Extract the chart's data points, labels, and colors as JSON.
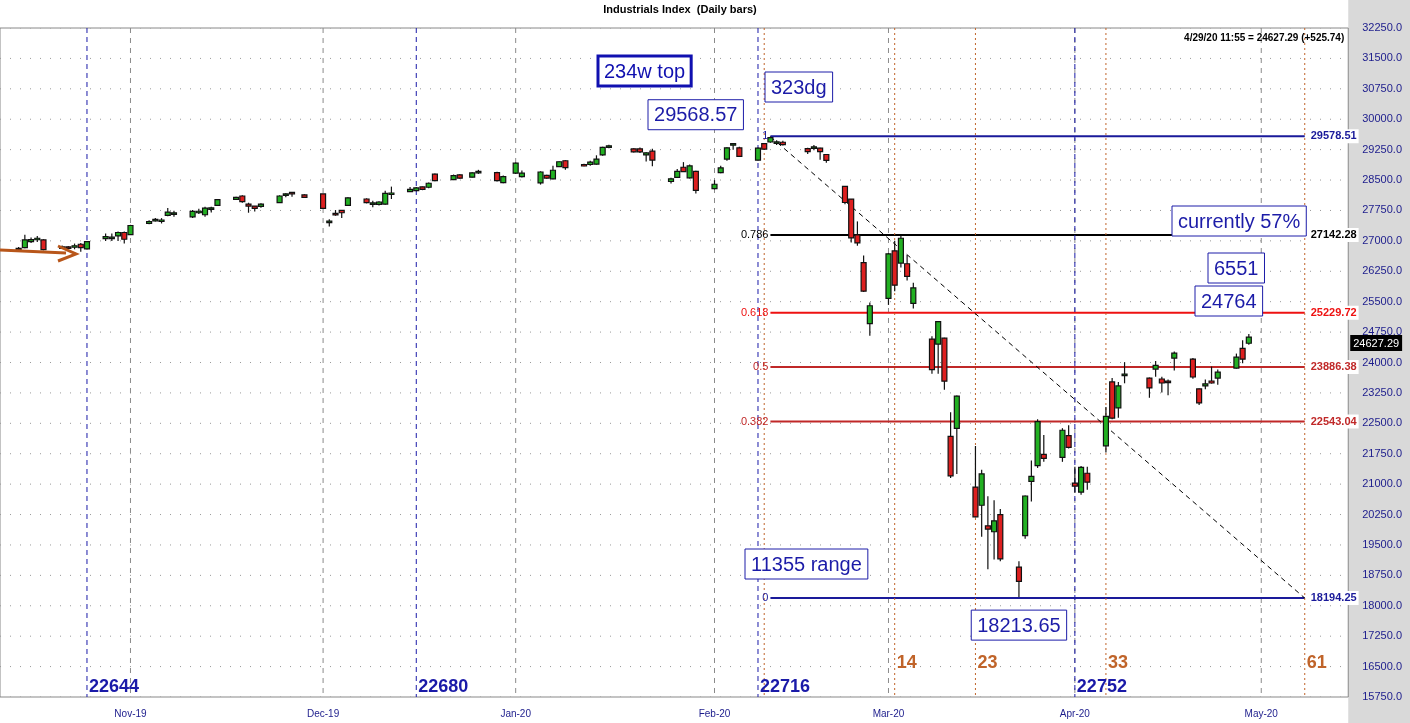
{
  "chart_data": {
    "type": "candlestick",
    "title": "Industrials Index  (Daily bars)",
    "x": [
      "2019-10-14",
      "2019-10-15",
      "2019-10-16",
      "2019-10-17",
      "2019-10-18",
      "2019-10-21",
      "2019-10-22",
      "2019-10-23",
      "2019-10-24",
      "2019-10-25",
      "2019-10-28",
      "2019-10-29",
      "2019-10-30",
      "2019-10-31",
      "2019-11-01",
      "2019-11-04",
      "2019-11-05",
      "2019-11-06",
      "2019-11-07",
      "2019-11-08",
      "2019-11-11",
      "2019-11-12",
      "2019-11-13",
      "2019-11-14",
      "2019-11-15",
      "2019-11-18",
      "2019-11-19",
      "2019-11-20",
      "2019-11-21",
      "2019-11-22",
      "2019-11-25",
      "2019-11-26",
      "2019-11-27",
      "2019-11-29",
      "2019-12-02",
      "2019-12-03",
      "2019-12-04",
      "2019-12-05",
      "2019-12-06",
      "2019-12-09",
      "2019-12-10",
      "2019-12-11",
      "2019-12-12",
      "2019-12-13",
      "2019-12-16",
      "2019-12-17",
      "2019-12-18",
      "2019-12-19",
      "2019-12-20",
      "2019-12-23",
      "2019-12-24",
      "2019-12-26",
      "2019-12-27",
      "2019-12-30",
      "2019-12-31",
      "2020-01-02",
      "2020-01-03",
      "2020-01-06",
      "2020-01-07",
      "2020-01-08",
      "2020-01-09",
      "2020-01-10",
      "2020-01-13",
      "2020-01-14",
      "2020-01-15",
      "2020-01-16",
      "2020-01-17",
      "2020-01-21",
      "2020-01-22",
      "2020-01-23",
      "2020-01-24",
      "2020-01-27",
      "2020-01-28",
      "2020-01-29",
      "2020-01-30",
      "2020-01-31",
      "2020-02-03",
      "2020-02-04",
      "2020-02-05",
      "2020-02-06",
      "2020-02-07",
      "2020-02-10",
      "2020-02-11",
      "2020-02-12",
      "2020-02-13",
      "2020-02-14",
      "2020-02-18",
      "2020-02-19",
      "2020-02-20",
      "2020-02-21",
      "2020-02-24",
      "2020-02-25",
      "2020-02-26",
      "2020-02-27",
      "2020-02-28",
      "2020-03-02",
      "2020-03-03",
      "2020-03-04",
      "2020-03-05",
      "2020-03-06",
      "2020-03-09",
      "2020-03-10",
      "2020-03-11",
      "2020-03-12",
      "2020-03-13",
      "2020-03-16",
      "2020-03-17",
      "2020-03-18",
      "2020-03-19",
      "2020-03-20",
      "2020-03-23",
      "2020-03-24",
      "2020-03-25",
      "2020-03-26",
      "2020-03-27",
      "2020-03-30",
      "2020-03-31",
      "2020-04-01",
      "2020-04-02",
      "2020-04-03",
      "2020-04-06",
      "2020-04-07",
      "2020-04-08",
      "2020-04-09",
      "2020-04-13",
      "2020-04-14",
      "2020-04-15",
      "2020-04-16",
      "2020-04-17",
      "2020-04-20",
      "2020-04-21",
      "2020-04-22",
      "2020-04-23",
      "2020-04-24",
      "2020-04-27",
      "2020-04-28",
      "2020-04-29"
    ],
    "ohlc": [
      [
        26817,
        26850,
        26767,
        26792
      ],
      [
        26833,
        27148,
        26817,
        27024
      ],
      [
        26982,
        27081,
        26949,
        27032
      ],
      [
        27057,
        27123,
        26974,
        27065
      ],
      [
        27024,
        27040,
        26767,
        26784
      ],
      [
        26850,
        26883,
        26817,
        26845
      ],
      [
        26850,
        26866,
        26800,
        26817
      ],
      [
        26875,
        26933,
        26792,
        26880
      ],
      [
        26916,
        26949,
        26734,
        26833
      ],
      [
        26800,
        26999,
        26784,
        26982
      ],
      [
        27057,
        27181,
        26999,
        27106
      ],
      [
        27081,
        27181,
        26999,
        27090
      ],
      [
        27123,
        27230,
        26999,
        27206
      ],
      [
        27206,
        27230,
        26933,
        27040
      ],
      [
        27156,
        27396,
        27148,
        27379
      ],
      [
        27429,
        27511,
        27412,
        27478
      ],
      [
        27528,
        27561,
        27478,
        27531
      ],
      [
        27511,
        27561,
        27429,
        27514
      ],
      [
        27627,
        27809,
        27610,
        27710
      ],
      [
        27685,
        27743,
        27594,
        27690
      ],
      [
        27594,
        27759,
        27561,
        27726
      ],
      [
        27726,
        27792,
        27660,
        27730
      ],
      [
        27644,
        27842,
        27594,
        27809
      ],
      [
        27809,
        27842,
        27702,
        27815
      ],
      [
        27875,
        28033,
        27867,
        28016
      ],
      [
        28024,
        28090,
        28008,
        28074
      ],
      [
        28107,
        28123,
        27941,
        27966
      ],
      [
        27908,
        27941,
        27694,
        27859
      ],
      [
        27859,
        27859,
        27726,
        27801
      ],
      [
        27850,
        27925,
        27818,
        27908
      ],
      [
        27941,
        28123,
        27941,
        28107
      ],
      [
        28140,
        28173,
        28074,
        28157
      ],
      [
        28198,
        28206,
        28090,
        28190
      ],
      [
        28132,
        28148,
        28060,
        28074
      ],
      [
        28157,
        28157,
        27790,
        27801
      ],
      [
        27480,
        27536,
        27354,
        27488
      ],
      [
        27677,
        27760,
        27619,
        27644
      ],
      [
        27751,
        27760,
        27561,
        27693
      ],
      [
        27875,
        28074,
        27867,
        28058
      ],
      [
        28033,
        28049,
        27925,
        27941
      ],
      [
        27925,
        27991,
        27826,
        27935
      ],
      [
        27900,
        27975,
        27875,
        27958
      ],
      [
        27908,
        28239,
        27892,
        28173
      ],
      [
        28173,
        28338,
        28033,
        28180
      ],
      [
        28214,
        28330,
        28206,
        28272
      ],
      [
        28239,
        28330,
        28223,
        28305
      ],
      [
        28330,
        28338,
        28250,
        28272
      ],
      [
        28322,
        28440,
        28300,
        28421
      ],
      [
        28644,
        28660,
        28470,
        28487
      ],
      [
        28512,
        28636,
        28500,
        28611
      ],
      [
        28627,
        28640,
        28530,
        28545
      ],
      [
        28570,
        28690,
        28560,
        28677
      ],
      [
        28710,
        28752,
        28653,
        28715
      ],
      [
        28685,
        28702,
        28462,
        28487
      ],
      [
        28437,
        28611,
        28421,
        28586
      ],
      [
        28669,
        28930,
        28650,
        28917
      ],
      [
        28586,
        28735,
        28562,
        28669
      ],
      [
        28430,
        28716,
        28388,
        28699
      ],
      [
        28615,
        28630,
        28530,
        28548
      ],
      [
        28531,
        28850,
        28520,
        28741
      ],
      [
        28833,
        28960,
        28820,
        28951
      ],
      [
        28976,
        28990,
        28757,
        28808
      ],
      [
        28884,
        28900,
        28840,
        28850
      ],
      [
        28884,
        28976,
        28850,
        28942
      ],
      [
        28892,
        29110,
        28880,
        29018
      ],
      [
        29119,
        29320,
        29100,
        29304
      ],
      [
        29337,
        29371,
        29287,
        29345
      ],
      [
        29270,
        29287,
        29180,
        29194
      ],
      [
        29270,
        29300,
        29170,
        29194
      ],
      [
        29119,
        29186,
        28959,
        29169
      ],
      [
        29211,
        29270,
        28842,
        28993
      ],
      [
        28464,
        28556,
        28414,
        28531
      ],
      [
        28564,
        28774,
        28550,
        28716
      ],
      [
        28816,
        28942,
        28700,
        28707
      ],
      [
        28556,
        28884,
        28540,
        28850
      ],
      [
        28716,
        28730,
        28171,
        28245
      ],
      [
        28287,
        28497,
        28270,
        28396
      ],
      [
        28682,
        28850,
        28670,
        28800
      ],
      [
        29018,
        29310,
        28976,
        29295
      ],
      [
        29388,
        29400,
        29245,
        29396
      ],
      [
        29295,
        29320,
        29070,
        29085
      ],
      [
        28993,
        29300,
        28980,
        29287
      ],
      [
        29396,
        29410,
        29250,
        29262
      ],
      [
        29438,
        29568.57,
        29420,
        29547
      ],
      [
        29430,
        29480,
        29366,
        29440
      ],
      [
        29432,
        29470,
        29350,
        29375
      ],
      [
        29276,
        29295,
        29140,
        29203
      ],
      [
        29310,
        29366,
        29236,
        29318
      ],
      [
        29285,
        29295,
        29000,
        29203
      ],
      [
        29130,
        29140,
        28926,
        28983
      ],
      [
        28346,
        28346,
        27900,
        27946
      ],
      [
        28028,
        28028,
        26960,
        27073
      ],
      [
        27146,
        27480,
        26880,
        26950
      ],
      [
        26461,
        26640,
        25740,
        25759
      ],
      [
        24959,
        25480,
        24660,
        25400
      ],
      [
        25580,
        26700,
        25420,
        26681
      ],
      [
        26755,
        27000,
        25760,
        25906
      ],
      [
        26453,
        27130,
        26340,
        27065
      ],
      [
        26436,
        26650,
        26020,
        26126
      ],
      [
        25457,
        25970,
        25330,
        25840
      ],
      [
        24576,
        24650,
        23720,
        23825
      ],
      [
        24454,
        25020,
        23720,
        25008
      ],
      [
        24600,
        24610,
        23330,
        23540
      ],
      [
        22176,
        22770,
        21150,
        21205
      ],
      [
        22373,
        23185,
        21253,
        23172
      ],
      [
        20928,
        21940,
        20180,
        20193
      ],
      [
        20479,
        21355,
        19700,
        21253
      ],
      [
        19973,
        20700,
        18900,
        19891
      ],
      [
        19826,
        20600,
        19140,
        20096
      ],
      [
        20250,
        20384,
        19100,
        19157
      ],
      [
        18953,
        19100,
        18213.65,
        18602
      ],
      [
        19728,
        20720,
        19650,
        20707
      ],
      [
        21070,
        21580,
        20570,
        21192
      ],
      [
        21456,
        22600,
        21400,
        22543
      ],
      [
        21733,
        22210,
        21550,
        21636
      ],
      [
        21660,
        22380,
        21550,
        22329
      ],
      [
        22198,
        22450,
        21880,
        21905
      ],
      [
        21024,
        21430,
        20790,
        20950
      ],
      [
        20804,
        21450,
        20740,
        21415
      ],
      [
        21269,
        21430,
        20860,
        21049
      ],
      [
        21945,
        22900,
        21780,
        22671
      ],
      [
        23520,
        23620,
        22600,
        22630
      ],
      [
        22883,
        23520,
        22640,
        23422
      ],
      [
        23700,
        24009,
        23487,
        23715
      ],
      [
        23617,
        23630,
        23130,
        23373
      ],
      [
        23838,
        24040,
        23650,
        23927
      ],
      [
        23593,
        23650,
        23260,
        23495
      ],
      [
        23540,
        23580,
        23190,
        23535
      ],
      [
        24107,
        24270,
        23800,
        24229
      ],
      [
        24082,
        24110,
        23600,
        23642
      ],
      [
        23348,
        23360,
        22950,
        23006
      ],
      [
        23422,
        23580,
        23340,
        23471
      ],
      [
        23544,
        23900,
        23480,
        23495
      ],
      [
        23617,
        23830,
        23450,
        23764
      ],
      [
        23862,
        24220,
        23850,
        24131
      ],
      [
        24350,
        24550,
        23980,
        24082
      ],
      [
        24475,
        24700,
        24440,
        24627.29
      ]
    ],
    "colors": [
      "#dd1f1f",
      "#22b022",
      "#22b022",
      "#22b022",
      "#dd1f1f",
      "#dd1f1f",
      "#dd1f1f",
      "#22b022",
      "#dd1f1f",
      "#22b022",
      "#22b022",
      "#22b022",
      "#22b022",
      "#dd1f1f",
      "#22b022",
      "#22b022",
      "#22b022",
      "#22b022",
      "#22b022",
      "#22b022",
      "#22b022",
      "#22b022",
      "#22b022",
      "#22b022",
      "#22b022",
      "#22b022",
      "#dd1f1f",
      "#dd1f1f",
      "#dd1f1f",
      "#22b022",
      "#22b022",
      "#22b022",
      "#dd1f1f",
      "#dd1f1f",
      "#dd1f1f",
      "#22b022",
      "#dd1f1f",
      "#dd1f1f",
      "#22b022",
      "#dd1f1f",
      "#22b022",
      "#22b022",
      "#22b022",
      "#22b022",
      "#22b022",
      "#22b022",
      "#dd1f1f",
      "#22b022",
      "#dd1f1f",
      "#22b022",
      "#dd1f1f",
      "#22b022",
      "#22b022",
      "#dd1f1f",
      "#22b022",
      "#22b022",
      "#22b022",
      "#22b022",
      "#dd1f1f",
      "#22b022",
      "#22b022",
      "#dd1f1f",
      "#dd1f1f",
      "#22b022",
      "#22b022",
      "#22b022",
      "#22b022",
      "#dd1f1f",
      "#dd1f1f",
      "#22b022",
      "#dd1f1f",
      "#22b022",
      "#22b022",
      "#dd1f1f",
      "#22b022",
      "#dd1f1f",
      "#22b022",
      "#22b022",
      "#22b022",
      "#22b022",
      "#dd1f1f",
      "#22b022",
      "#dd1f1f",
      "#22b022",
      "#22b022",
      "#dd1f1f",
      "#dd1f1f",
      "#22b022",
      "#dd1f1f",
      "#dd1f1f",
      "#dd1f1f",
      "#dd1f1f",
      "#dd1f1f",
      "#dd1f1f",
      "#22b022",
      "#22b022",
      "#dd1f1f",
      "#22b022",
      "#dd1f1f",
      "#22b022",
      "#dd1f1f",
      "#22b022",
      "#dd1f1f",
      "#dd1f1f",
      "#22b022",
      "#dd1f1f",
      "#22b022",
      "#dd1f1f",
      "#22b022",
      "#dd1f1f",
      "#dd1f1f",
      "#22b022",
      "#22b022",
      "#22b022",
      "#dd1f1f",
      "#22b022",
      "#dd1f1f",
      "#dd1f1f",
      "#22b022",
      "#dd1f1f",
      "#22b022",
      "#dd1f1f",
      "#22b022",
      "#22b022",
      "#dd1f1f",
      "#22b022",
      "#dd1f1f",
      "#dd1f1f",
      "#22b022",
      "#dd1f1f",
      "#dd1f1f",
      "#22b022",
      "#dd1f1f",
      "#22b022",
      "#22b022",
      "#dd1f1f",
      "#22b022"
    ],
    "series": [
      {
        "type": "line",
        "x": [
          "2020-02-12",
          "2020-05-08"
        ],
        "values": [
          29570,
          18190
        ],
        "color": "#000000",
        "line_style": "dashed",
        "marker": "none"
      }
    ],
    "xlim": [
      "2019-10-11",
      "2020-05-15"
    ],
    "xticks": [
      {
        "value": "2019-11-01",
        "label": "Nov-19"
      },
      {
        "value": "2019-12-02",
        "label": "Dec-19"
      },
      {
        "value": "2020-01-02",
        "label": "Jan-20"
      },
      {
        "value": "2020-02-03",
        "label": "Feb-20"
      },
      {
        "value": "2020-03-02",
        "label": "Mar-20"
      },
      {
        "value": "2020-04-01",
        "label": "Apr-20"
      },
      {
        "value": "2020-05-01",
        "label": "May-20"
      }
    ],
    "ylim": [
      15750,
      32250
    ],
    "yticks": [
      {
        "value": 15750,
        "label": "15750.0"
      },
      {
        "value": 16500,
        "label": "16500.0"
      },
      {
        "value": 17250,
        "label": "17250.0"
      },
      {
        "value": 18000,
        "label": "18000.0"
      },
      {
        "value": 18750,
        "label": "18750.0"
      },
      {
        "value": 19500,
        "label": "19500.0"
      },
      {
        "value": 20250,
        "label": "20250.0"
      },
      {
        "value": 21000,
        "label": "21000.0"
      },
      {
        "value": 21750,
        "label": "21750.0"
      },
      {
        "value": 22500,
        "label": "22500.0"
      },
      {
        "value": 23250,
        "label": "23250.0"
      },
      {
        "value": 24000,
        "label": "24000.0"
      },
      {
        "value": 24750,
        "label": "24750.0"
      },
      {
        "value": 25500,
        "label": "25500.0"
      },
      {
        "value": 26250,
        "label": "26250.0"
      },
      {
        "value": 27000,
        "label": "27000.0"
      },
      {
        "value": 27750,
        "label": "27750.0"
      },
      {
        "value": 28500,
        "label": "28500.0"
      },
      {
        "value": 29250,
        "label": "29250.0"
      },
      {
        "value": 30000,
        "label": "30000.0"
      },
      {
        "value": 30750,
        "label": "30750.0"
      },
      {
        "value": 31500,
        "label": "31500.0"
      },
      {
        "value": 32250,
        "label": "32250.0"
      }
    ],
    "grid": true,
    "ref_lines": [
      {
        "axis": "y",
        "value": 29578.51,
        "label": "29578.51",
        "color": "#1a1a9a"
      },
      {
        "axis": "y",
        "value": 27142.28,
        "label": "27142.28",
        "color": "#000000"
      },
      {
        "axis": "y",
        "value": 25229.72,
        "label": "25229.72",
        "color": "#ee1111"
      },
      {
        "axis": "y",
        "value": 23886.38,
        "label": "23886.38",
        "color": "#c02828"
      },
      {
        "axis": "y",
        "value": 22543.04,
        "label": "22543.04",
        "color": "#c02828"
      },
      {
        "axis": "y",
        "value": 18194.25,
        "label": "18194.25",
        "color": "#1a1a9a"
      },
      {
        "axis": "x",
        "value": "2019-10-25",
        "label": "22644",
        "color": "#1a1aa8",
        "line_style": "dashed"
      },
      {
        "axis": "x",
        "value": "2019-12-17",
        "label": "22680",
        "color": "#1a1aa8",
        "line_style": "dashed"
      },
      {
        "axis": "x",
        "value": "2020-02-10",
        "label": "22716",
        "color": "#1a1aa8",
        "line_style": "dashed"
      },
      {
        "axis": "x",
        "value": "2020-04-01",
        "label": "22752",
        "color": "#1a1aa8",
        "line_style": "dashed"
      },
      {
        "axis": "x",
        "value": "2020-02-11",
        "label": null,
        "color": "#c0642a",
        "line_style": "dotted"
      },
      {
        "axis": "x",
        "value": "2020-03-03",
        "label": "14",
        "color": "#c0642a",
        "line_style": "dotted"
      },
      {
        "axis": "x",
        "value": "2020-03-16",
        "label": "23",
        "color": "#c0642a",
        "line_style": "dotted"
      },
      {
        "axis": "x",
        "value": "2020-04-06",
        "label": "33",
        "color": "#c0642a",
        "line_style": "dotted"
      },
      {
        "axis": "x",
        "value": "2020-05-08",
        "label": "61",
        "color": "#c0642a",
        "line_style": "dotted"
      }
    ],
    "annotations": [
      "234w top",
      "323dg",
      "currently 57%",
      "6551",
      "24764",
      "11355 range",
      "4/29/20 11:55 = 24627.29 (+525.74)",
      "24627.29",
      {
        "text": "29568.57",
        "x": "2020-02-12",
        "y": 29568.57
      },
      {
        "text": "18213.65",
        "x": "2020-03-23",
        "y": 18213.65
      },
      "1",
      "0.786",
      "0.618",
      "0.5",
      "0.382",
      "0"
    ]
  }
}
